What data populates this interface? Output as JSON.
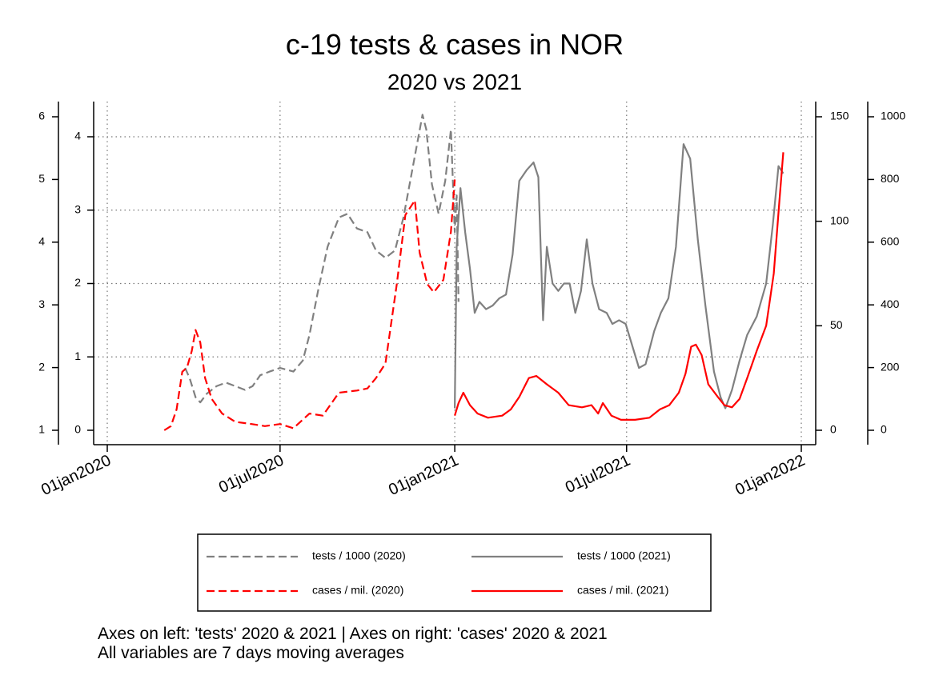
{
  "chart_data": {
    "type": "line",
    "title": "c-19 tests & cases in NOR",
    "subtitle": "2020 vs 2021",
    "x_range": [
      "2020-01-01",
      "2022-01-01"
    ],
    "x_ticks": [
      {
        "date": "2020-01-01",
        "label": "01jan2020"
      },
      {
        "date": "2020-07-01",
        "label": "01jul2020"
      },
      {
        "date": "2021-01-01",
        "label": "01jan2021"
      },
      {
        "date": "2021-07-01",
        "label": "01jul2021"
      },
      {
        "date": "2022-01-01",
        "label": "01jan2022"
      }
    ],
    "axes": {
      "left_outer": {
        "range": [
          1,
          6
        ],
        "ticks": [
          1,
          2,
          3,
          4,
          5,
          6
        ]
      },
      "left_inner": {
        "range": [
          0,
          4.4
        ],
        "ticks": [
          0,
          1,
          2,
          3,
          4
        ]
      },
      "right_inner": {
        "range": [
          0,
          150
        ],
        "ticks": [
          0,
          50,
          100,
          150
        ]
      },
      "right_outer": {
        "range": [
          0,
          1000
        ],
        "ticks": [
          0,
          200,
          400,
          600,
          800,
          1000
        ]
      }
    },
    "grid": true,
    "legend_position": "bottom",
    "series": [
      {
        "name": "tests / 1000 (2020)",
        "axis": "left_inner",
        "color": "#808080",
        "dash": "dashed",
        "points": [
          [
            "2020-03-23",
            0.85
          ],
          [
            "2020-03-28",
            0.7
          ],
          [
            "2020-04-03",
            0.45
          ],
          [
            "2020-04-08",
            0.38
          ],
          [
            "2020-04-15",
            0.5
          ],
          [
            "2020-04-25",
            0.6
          ],
          [
            "2020-05-05",
            0.65
          ],
          [
            "2020-05-15",
            0.6
          ],
          [
            "2020-05-25",
            0.55
          ],
          [
            "2020-06-02",
            0.6
          ],
          [
            "2020-06-10",
            0.75
          ],
          [
            "2020-06-20",
            0.8
          ],
          [
            "2020-07-01",
            0.85
          ],
          [
            "2020-07-15",
            0.8
          ],
          [
            "2020-07-25",
            0.95
          ],
          [
            "2020-08-01",
            1.3
          ],
          [
            "2020-08-10",
            1.9
          ],
          [
            "2020-08-20",
            2.5
          ],
          [
            "2020-09-01",
            2.9
          ],
          [
            "2020-09-10",
            2.95
          ],
          [
            "2020-09-20",
            2.75
          ],
          [
            "2020-10-01",
            2.7
          ],
          [
            "2020-10-10",
            2.45
          ],
          [
            "2020-10-20",
            2.35
          ],
          [
            "2020-10-30",
            2.45
          ],
          [
            "2020-11-08",
            2.9
          ],
          [
            "2020-11-18",
            3.6
          ],
          [
            "2020-11-28",
            4.3
          ],
          [
            "2020-12-02",
            4.1
          ],
          [
            "2020-12-08",
            3.35
          ],
          [
            "2020-12-15",
            2.95
          ],
          [
            "2020-12-22",
            3.4
          ],
          [
            "2020-12-28",
            4.1
          ],
          [
            "2021-01-01",
            2.7
          ],
          [
            "2021-01-03",
            3.2
          ],
          [
            "2021-01-05",
            1.75
          ]
        ]
      },
      {
        "name": "cases / mil. (2020)",
        "axis": "right_inner",
        "color": "#ff0000",
        "dash": "dashed",
        "points": [
          [
            "2020-03-01",
            0
          ],
          [
            "2020-03-08",
            2
          ],
          [
            "2020-03-14",
            10
          ],
          [
            "2020-03-20",
            28
          ],
          [
            "2020-03-25",
            30
          ],
          [
            "2020-03-30",
            38
          ],
          [
            "2020-04-03",
            48
          ],
          [
            "2020-04-08",
            42
          ],
          [
            "2020-04-13",
            25
          ],
          [
            "2020-04-20",
            15
          ],
          [
            "2020-05-01",
            8
          ],
          [
            "2020-05-15",
            4
          ],
          [
            "2020-06-01",
            3
          ],
          [
            "2020-06-15",
            2
          ],
          [
            "2020-07-01",
            3
          ],
          [
            "2020-07-15",
            1
          ],
          [
            "2020-08-01",
            8
          ],
          [
            "2020-08-15",
            7
          ],
          [
            "2020-09-01",
            18
          ],
          [
            "2020-09-20",
            19
          ],
          [
            "2020-10-01",
            20
          ],
          [
            "2020-10-10",
            25
          ],
          [
            "2020-10-20",
            32
          ],
          [
            "2020-11-01",
            70
          ],
          [
            "2020-11-10",
            103
          ],
          [
            "2020-11-20",
            110
          ],
          [
            "2020-11-25",
            85
          ],
          [
            "2020-12-03",
            70
          ],
          [
            "2020-12-10",
            66
          ],
          [
            "2020-12-20",
            72
          ],
          [
            "2020-12-28",
            95
          ],
          [
            "2021-01-01",
            120
          ]
        ]
      },
      {
        "name": "tests / 1000 (2021)",
        "axis": "left_inner",
        "color": "#808080",
        "dash": "solid",
        "points": [
          [
            "2021-01-01",
            0.3
          ],
          [
            "2021-01-03",
            2.5
          ],
          [
            "2021-01-07",
            3.3
          ],
          [
            "2021-01-12",
            2.7
          ],
          [
            "2021-01-17",
            2.2
          ],
          [
            "2021-01-22",
            1.6
          ],
          [
            "2021-01-27",
            1.75
          ],
          [
            "2021-02-03",
            1.65
          ],
          [
            "2021-02-10",
            1.7
          ],
          [
            "2021-02-17",
            1.8
          ],
          [
            "2021-02-24",
            1.85
          ],
          [
            "2021-03-03",
            2.4
          ],
          [
            "2021-03-10",
            3.4
          ],
          [
            "2021-03-18",
            3.55
          ],
          [
            "2021-03-25",
            3.65
          ],
          [
            "2021-03-30",
            3.45
          ],
          [
            "2021-04-04",
            1.5
          ],
          [
            "2021-04-08",
            2.5
          ],
          [
            "2021-04-14",
            2.0
          ],
          [
            "2021-04-20",
            1.9
          ],
          [
            "2021-04-26",
            2.0
          ],
          [
            "2021-05-02",
            2.0
          ],
          [
            "2021-05-08",
            1.6
          ],
          [
            "2021-05-14",
            1.9
          ],
          [
            "2021-05-20",
            2.6
          ],
          [
            "2021-05-26",
            2.0
          ],
          [
            "2021-06-02",
            1.65
          ],
          [
            "2021-06-10",
            1.6
          ],
          [
            "2021-06-16",
            1.45
          ],
          [
            "2021-06-23",
            1.5
          ],
          [
            "2021-06-30",
            1.45
          ],
          [
            "2021-07-07",
            1.15
          ],
          [
            "2021-07-14",
            0.85
          ],
          [
            "2021-07-21",
            0.9
          ],
          [
            "2021-07-30",
            1.35
          ],
          [
            "2021-08-06",
            1.6
          ],
          [
            "2021-08-14",
            1.8
          ],
          [
            "2021-08-22",
            2.5
          ],
          [
            "2021-08-30",
            3.9
          ],
          [
            "2021-09-06",
            3.7
          ],
          [
            "2021-09-14",
            2.6
          ],
          [
            "2021-09-22",
            1.7
          ],
          [
            "2021-10-01",
            0.8
          ],
          [
            "2021-10-08",
            0.45
          ],
          [
            "2021-10-13",
            0.3
          ],
          [
            "2021-10-20",
            0.55
          ],
          [
            "2021-10-28",
            0.95
          ],
          [
            "2021-11-05",
            1.3
          ],
          [
            "2021-11-15",
            1.55
          ],
          [
            "2021-11-25",
            2.0
          ],
          [
            "2021-12-02",
            2.8
          ],
          [
            "2021-12-08",
            3.6
          ],
          [
            "2021-12-13",
            3.5
          ]
        ]
      },
      {
        "name": "cases / mil. (2021)",
        "axis": "right_inner",
        "color": "#ff0000",
        "dash": "solid",
        "points": [
          [
            "2021-01-01",
            7
          ],
          [
            "2021-01-05",
            13
          ],
          [
            "2021-01-10",
            18
          ],
          [
            "2021-01-17",
            12
          ],
          [
            "2021-01-25",
            8
          ],
          [
            "2021-02-05",
            6
          ],
          [
            "2021-02-20",
            7
          ],
          [
            "2021-03-01",
            10
          ],
          [
            "2021-03-10",
            16
          ],
          [
            "2021-03-20",
            25
          ],
          [
            "2021-03-28",
            26
          ],
          [
            "2021-04-08",
            22
          ],
          [
            "2021-04-20",
            18
          ],
          [
            "2021-05-01",
            12
          ],
          [
            "2021-05-15",
            11
          ],
          [
            "2021-05-25",
            12
          ],
          [
            "2021-06-01",
            8
          ],
          [
            "2021-06-06",
            13
          ],
          [
            "2021-06-15",
            7
          ],
          [
            "2021-06-25",
            5
          ],
          [
            "2021-07-10",
            5
          ],
          [
            "2021-07-25",
            6
          ],
          [
            "2021-08-05",
            10
          ],
          [
            "2021-08-15",
            12
          ],
          [
            "2021-08-25",
            18
          ],
          [
            "2021-09-01",
            27
          ],
          [
            "2021-09-07",
            40
          ],
          [
            "2021-09-12",
            41
          ],
          [
            "2021-09-18",
            36
          ],
          [
            "2021-09-25",
            22
          ],
          [
            "2021-10-05",
            16
          ],
          [
            "2021-10-12",
            12
          ],
          [
            "2021-10-20",
            11
          ],
          [
            "2021-10-28",
            15
          ],
          [
            "2021-11-05",
            25
          ],
          [
            "2021-11-15",
            38
          ],
          [
            "2021-11-25",
            50
          ],
          [
            "2021-12-03",
            75
          ],
          [
            "2021-12-09",
            110
          ],
          [
            "2021-12-13",
            133
          ]
        ]
      }
    ],
    "footnotes": [
      "Axes on left: 'tests' 2020 & 2021 | Axes on right: 'cases' 2020 & 2021",
      "All variables are 7 days moving averages"
    ]
  }
}
